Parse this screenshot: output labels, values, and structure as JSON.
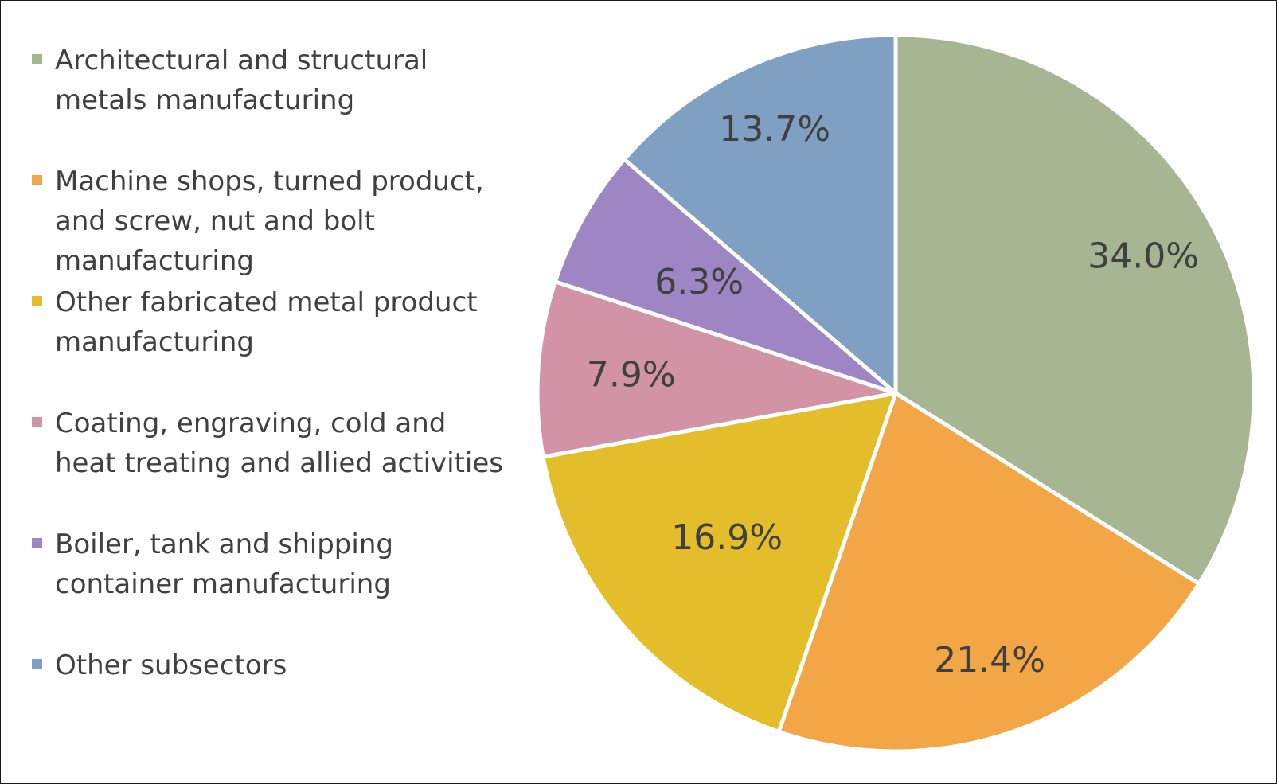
{
  "chart_data": {
    "type": "pie",
    "legend_position": "left",
    "categories": [
      "Architectural and structural metals manufacturing",
      "Machine shops, turned product, and screw, nut and bolt manufacturing",
      "Other fabricated metal product manufacturing",
      "Coating, engraving, cold and heat treating and allied activities",
      "Boiler, tank and shipping container manufacturing",
      "Other subsectors"
    ],
    "values": [
      34.0,
      21.4,
      16.9,
      7.9,
      6.3,
      13.7
    ],
    "labels": [
      "34.0%",
      "21.4%",
      "16.9%",
      "7.9%",
      "6.3%",
      "13.7%"
    ],
    "colors": [
      "#a6b592",
      "#f2a646",
      "#e4bd2b",
      "#d293a6",
      "#9d86c3",
      "#7f9fc3"
    ]
  }
}
